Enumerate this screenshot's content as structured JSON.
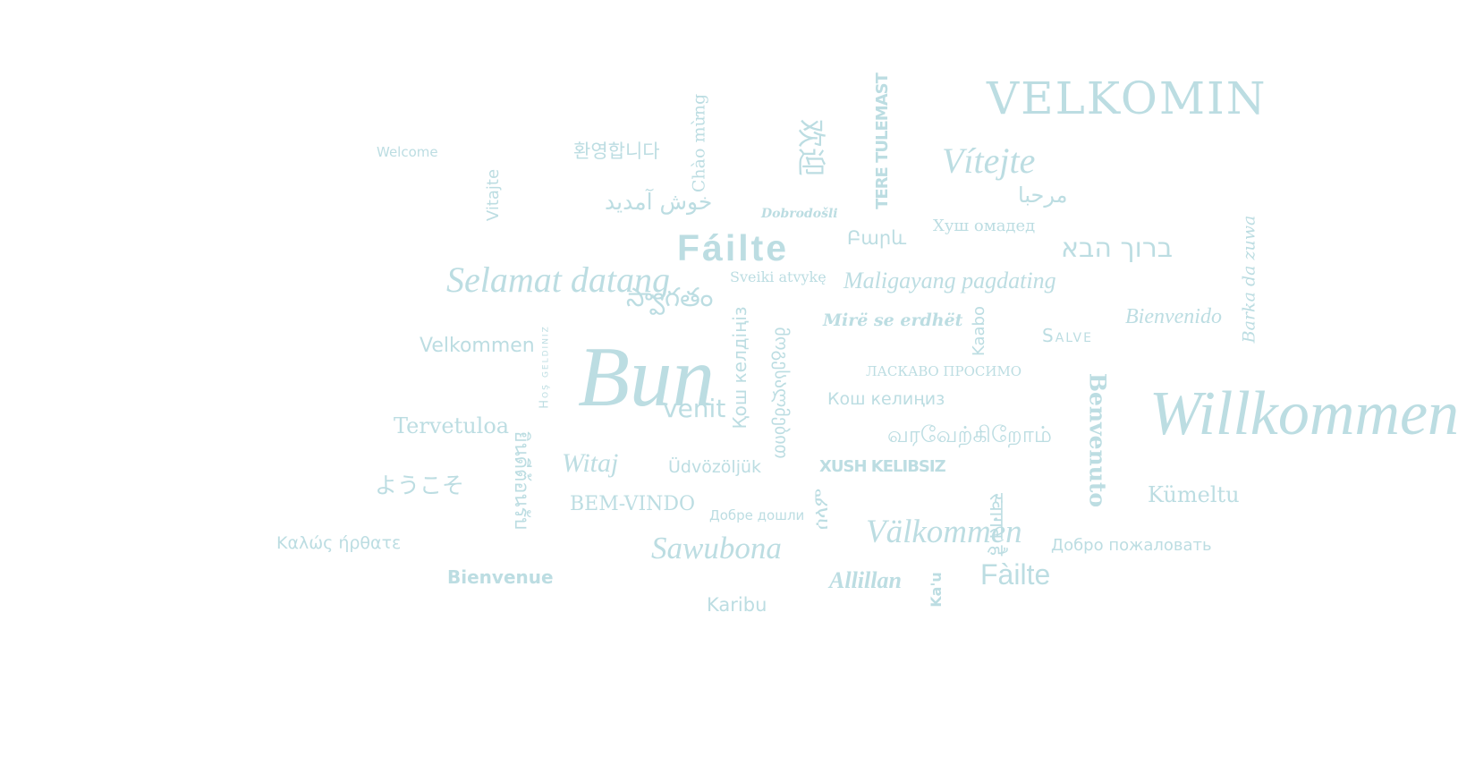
{
  "palette": {
    "text": "#bcdde2",
    "background": "#ffffff"
  },
  "words": [
    {
      "id": "welcome",
      "text": "Welcome"
    },
    {
      "id": "hwanyeong",
      "text": "환영합니다"
    },
    {
      "id": "chao-mung",
      "text": "Chào mừng"
    },
    {
      "id": "huanying",
      "text": "欢迎"
    },
    {
      "id": "tere-tulemast",
      "text": "TERE TULEMAST"
    },
    {
      "id": "velkomin",
      "text": "VELKOMIN"
    },
    {
      "id": "vitejte",
      "text": "Vítejte"
    },
    {
      "id": "marhaba",
      "text": "مرحبا"
    },
    {
      "id": "vitajte",
      "text": "Vitajte"
    },
    {
      "id": "khosh-amadid",
      "text": "خوش آمدید"
    },
    {
      "id": "dobrodosli",
      "text": "Dobrodošli"
    },
    {
      "id": "bari-galust",
      "text": "Բարև"
    },
    {
      "id": "khush-omaded",
      "text": "Хуш омадед"
    },
    {
      "id": "failte-main",
      "text": "Fáilte"
    },
    {
      "id": "baruch-haba",
      "text": "ברוך הבא"
    },
    {
      "id": "barka-da-zuwa",
      "text": "Barka da zuwa"
    },
    {
      "id": "selamat-datang",
      "text": "Selamat datang"
    },
    {
      "id": "sveiki-atvyke",
      "text": "Sveiki atvykę"
    },
    {
      "id": "maligayang-pagdating",
      "text": "Maligayang pagdating"
    },
    {
      "id": "swagatam",
      "text": "స్వాగతం"
    },
    {
      "id": "bienvenido",
      "text": "Bienvenido"
    },
    {
      "id": "mire-se-erdhet",
      "text": "Mirë se erdhët"
    },
    {
      "id": "kaabo",
      "text": "Kaabo"
    },
    {
      "id": "salve",
      "text": "Salve"
    },
    {
      "id": "velkommen",
      "text": "Velkommen"
    },
    {
      "id": "hos-geldiniz",
      "text": "Hoş geldiniz"
    },
    {
      "id": "bun",
      "text": "Bun"
    },
    {
      "id": "venit",
      "text": "venit"
    },
    {
      "id": "kosh-keldiniz",
      "text": "Қош келдіңіз"
    },
    {
      "id": "mogesalmebit",
      "text": "მოგესალმებით"
    },
    {
      "id": "laskavo-prosymo",
      "text": "ЛАСКАВО ПРОСИМО"
    },
    {
      "id": "kosh-kelinis",
      "text": "Кош келиңиз"
    },
    {
      "id": "benvenuto",
      "text": "Benvenuto"
    },
    {
      "id": "willkommen",
      "text": "Willkommen"
    },
    {
      "id": "tervetuloa",
      "text": "Tervetuloa"
    },
    {
      "id": "varaverkirom",
      "text": "வரவேற்கிறோம்"
    },
    {
      "id": "yindi-tonrap",
      "text": "ยินดีต้อนรับ"
    },
    {
      "id": "witaj",
      "text": "Witaj"
    },
    {
      "id": "udvozoljuk",
      "text": "Üdvözöljük"
    },
    {
      "id": "xush-kelibsiz",
      "text": "XUSH KELIBSIZ"
    },
    {
      "id": "youkoso",
      "text": "ようこそ"
    },
    {
      "id": "bem-vindo",
      "text": "BEM-VINDO"
    },
    {
      "id": "kumeltu",
      "text": "Kümeltu"
    },
    {
      "id": "dobre-doshli",
      "text": "Добре дошли"
    },
    {
      "id": "hello-ge",
      "text": "ሰላም"
    },
    {
      "id": "valkommen",
      "text": "Välkommen"
    },
    {
      "id": "swagat-hai",
      "text": "स्वागत है"
    },
    {
      "id": "kalos-irthate",
      "text": "Καλώς ήρθατε"
    },
    {
      "id": "sawubona",
      "text": "Sawubona"
    },
    {
      "id": "dobro-pozhalovat",
      "text": "Добро пожаловать"
    },
    {
      "id": "failte-small",
      "text": "Fàilte"
    },
    {
      "id": "bienvenue",
      "text": "Bienvenue"
    },
    {
      "id": "allillan",
      "text": "Allillan"
    },
    {
      "id": "kau",
      "text": "Ka'u"
    },
    {
      "id": "karibu",
      "text": "Karibu"
    }
  ]
}
